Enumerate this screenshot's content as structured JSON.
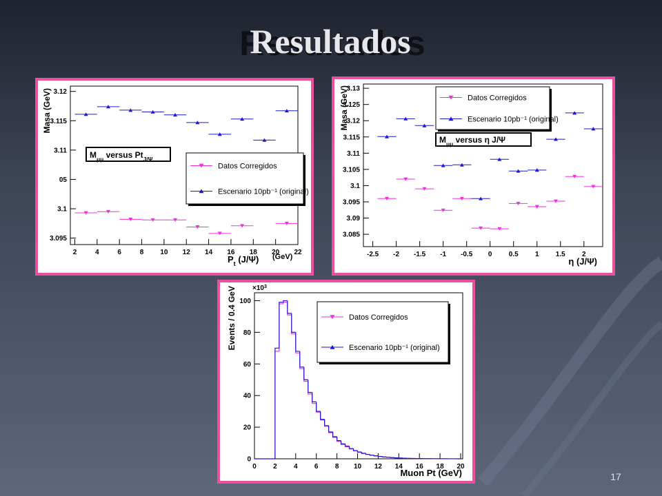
{
  "slide": {
    "title": "Resultados",
    "page_number": "17"
  },
  "chart_data": [
    {
      "type": "scatter",
      "annotation": [
        {
          "text": "M"
        },
        {
          "text": "μμ",
          "sub": true
        },
        {
          "text": " versus Pt"
        },
        {
          "text": "J/Ψ",
          "sub": true
        }
      ],
      "ylabel": "Masa (GeV)",
      "xlabel": [
        {
          "text": "P"
        },
        {
          "text": "t",
          "sub": true
        },
        {
          "text": " (J/Ψ)"
        }
      ],
      "xlabel_unit": "(GeV)",
      "x": [
        3,
        5,
        7,
        9,
        11,
        13,
        15,
        17,
        19,
        21
      ],
      "xerr": 1,
      "series": [
        {
          "name": "Datos Corregidos",
          "color": "#ee33dd",
          "marker": "triangle-down",
          "values": [
            3.0993,
            3.0995,
            3.0982,
            3.0981,
            3.0981,
            3.0969,
            3.0958,
            3.0971,
            null,
            3.0975
          ]
        },
        {
          "name": "Escenario 10pb⁻¹ (original)",
          "color": "#1a1acc",
          "marker": "triangle-up",
          "values": [
            3.1161,
            3.1174,
            3.1168,
            3.1165,
            3.116,
            3.1147,
            3.1127,
            3.1153,
            3.1117,
            3.1167
          ]
        }
      ],
      "xlim": [
        1.6,
        22
      ],
      "ylim": [
        3.0939,
        3.1209
      ],
      "xticks": [
        2,
        4,
        6,
        8,
        10,
        12,
        14,
        16,
        18,
        20,
        22
      ],
      "yticks": [
        3.095,
        3.1,
        {
          "value": 3.105,
          "label": "05"
        },
        3.11,
        3.115,
        3.12
      ]
    },
    {
      "type": "scatter",
      "annotation": [
        {
          "text": "M"
        },
        {
          "text": "μμ",
          "sub": true
        },
        {
          "text": " versus η  J/Ψ"
        }
      ],
      "ylabel": "Masa (GeV)",
      "xlabel": [
        {
          "text": "η (J/Ψ)"
        }
      ],
      "x": [
        -2.2,
        -1.8,
        -1.4,
        -1.0,
        -0.6,
        -0.2,
        0.2,
        0.6,
        1.0,
        1.4,
        1.8,
        2.2
      ],
      "xerr": 0.2,
      "series": [
        {
          "name": "Datos Corregidos",
          "color": "#ee33dd",
          "marker": "triangle-down",
          "values": [
            3.096,
            3.102,
            3.099,
            3.0924,
            3.096,
            3.0869,
            3.0867,
            3.0945,
            3.0935,
            3.0952,
            3.1028,
            3.0997
          ]
        },
        {
          "name": "Escenario 10pb⁻¹ (original)",
          "color": "#1a1acc",
          "marker": "triangle-up",
          "values": [
            3.1151,
            3.1206,
            3.1185,
            3.1062,
            3.1064,
            3.096,
            3.1081,
            3.1045,
            3.1048,
            3.1143,
            3.1224,
            3.1175
          ]
        }
      ],
      "xlim": [
        -2.7,
        2.4
      ],
      "ylim": [
        3.0812,
        3.1313
      ],
      "xticks": [
        -2.5,
        -2,
        -1.5,
        -1,
        -0.5,
        0,
        0.5,
        1,
        1.5,
        2
      ],
      "yticks": [
        3.085,
        3.09,
        3.095,
        3.1,
        3.105,
        3.11,
        3.115,
        3.12,
        3.125,
        3.13
      ]
    },
    {
      "type": "histogram",
      "ylabel": "Events / 0.4 GeV",
      "xlabel": [
        {
          "text": "Muon Pt (GeV)"
        }
      ],
      "y_multiplier": [
        {
          "text": "×10"
        },
        {
          "text": "3",
          "sup": true
        }
      ],
      "bins": [
        0,
        0.4,
        0.8,
        1.2,
        1.6,
        2,
        2.4,
        2.8,
        3.2,
        3.6,
        4,
        4.4,
        4.8,
        5.2,
        5.6,
        6,
        6.4,
        6.8,
        7.2,
        7.6,
        8,
        8.4,
        8.8,
        9.2,
        9.6,
        10,
        10.4,
        10.8,
        11.2,
        11.6,
        12,
        12.4,
        12.8,
        13.2,
        13.6,
        14,
        14.4,
        14.8,
        15.2,
        15.6,
        16,
        16.4,
        16.8,
        17.2,
        17.6,
        18,
        18.4,
        18.8,
        19.2,
        19.6,
        20
      ],
      "series": [
        {
          "name": "Datos Corregidos",
          "color": "#ee33dd",
          "marker": "triangle-down",
          "values": [
            0,
            0,
            0,
            0,
            0,
            68,
            98,
            99,
            91,
            79,
            67,
            57,
            49,
            41,
            35,
            29.5,
            24.5,
            20.5,
            16.5,
            13.5,
            11,
            9,
            7.6,
            6.2,
            5,
            4.1,
            3.3,
            2.7,
            2.2,
            1.8,
            1.4,
            1.1,
            0.9,
            0.7,
            0.55,
            0.45,
            0.35,
            0.28,
            0.22,
            0.18,
            0.13,
            0.1,
            0.08,
            0.07,
            0.05,
            0.04,
            0.03,
            0.02,
            0.02,
            0.01
          ]
        },
        {
          "name": "Escenario 10pb⁻¹ (original)",
          "color": "#1a1acc",
          "marker": "triangle-up",
          "values": [
            0,
            0,
            0,
            0,
            0,
            70,
            99,
            100,
            92,
            80,
            68,
            58,
            50,
            42,
            36,
            30,
            25,
            21,
            17,
            14,
            11.5,
            9.5,
            8,
            6.5,
            5.2,
            4.3,
            3.5,
            2.8,
            2.3,
            1.9,
            1.5,
            1.2,
            1,
            0.8,
            0.6,
            0.5,
            0.4,
            0.3,
            0.25,
            0.2,
            0.15,
            0.12,
            0.1,
            0.08,
            0.06,
            0.05,
            0.04,
            0.03,
            0.02,
            0.02
          ]
        }
      ],
      "xlim": [
        0,
        20.2
      ],
      "ylim": [
        0,
        105
      ],
      "xticks": [
        0,
        2,
        4,
        6,
        8,
        10,
        12,
        14,
        16,
        18,
        20
      ],
      "yticks": [
        0,
        20,
        40,
        60,
        80,
        100
      ]
    }
  ]
}
